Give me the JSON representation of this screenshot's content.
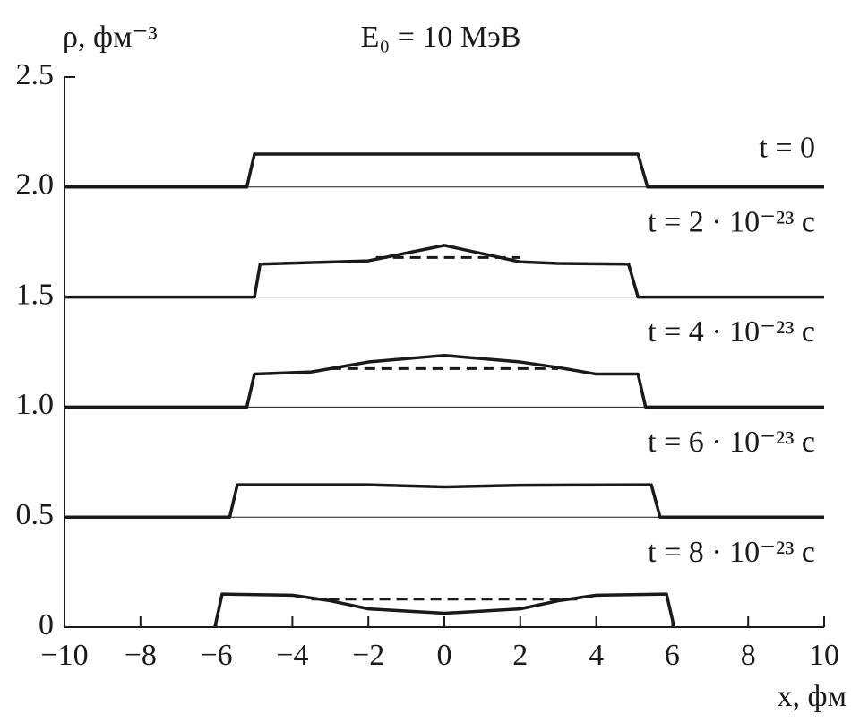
{
  "chart_data": {
    "type": "line",
    "title": "E₀ = 10 МэВ",
    "ylabel": "ρ, фм⁻³",
    "xlabel": "x, фм",
    "color": "#1a1a1a",
    "xlim": [
      -10,
      10
    ],
    "ylim": [
      0,
      2.5
    ],
    "xticks": [
      {
        "value": -10,
        "label": "−10"
      },
      {
        "value": -8,
        "label": "−8"
      },
      {
        "value": -6,
        "label": "−6"
      },
      {
        "value": -4,
        "label": "−4"
      },
      {
        "value": -2,
        "label": "−2"
      },
      0,
      2,
      4,
      6,
      8,
      10
    ],
    "yticks": [
      0,
      0.5,
      {
        "value": 1,
        "label": "1.0"
      },
      1.5,
      {
        "value": 2,
        "label": "2.0"
      },
      2.5
    ],
    "series": [
      {
        "name": "t = 0",
        "x": [
          -10,
          -5.2,
          -5.0,
          5.1,
          5.35,
          10
        ],
        "values": [
          2.0,
          2.0,
          2.15,
          2.15,
          2.0,
          2.0
        ]
      },
      {
        "name": "t = 2 · 10⁻²³ с",
        "x": [
          -10,
          -5.0,
          -4.85,
          -2,
          0,
          2,
          3,
          4.85,
          5.1,
          10
        ],
        "values": [
          1.5,
          1.5,
          1.65,
          1.665,
          1.735,
          1.66,
          1.653,
          1.65,
          1.5,
          1.5
        ],
        "dashed": {
          "x": [
            -1.8,
            2.0
          ],
          "values": [
            1.68,
            1.68
          ]
        }
      },
      {
        "name": "t = 4 · 10⁻²³ с",
        "x": [
          -10,
          -5.2,
          -5.0,
          -3.5,
          -2,
          0,
          2,
          3,
          4,
          5.1,
          5.3,
          10
        ],
        "values": [
          1.0,
          1.0,
          1.15,
          1.16,
          1.205,
          1.235,
          1.205,
          1.18,
          1.15,
          1.15,
          1.0,
          1.0
        ],
        "dashed": {
          "x": [
            -3.0,
            3.0
          ],
          "values": [
            1.175,
            1.175
          ]
        }
      },
      {
        "name": "t = 6 · 10⁻²³ с",
        "x": [
          -10,
          -5.65,
          -5.45,
          -2,
          0,
          2,
          5.45,
          5.68,
          10
        ],
        "values": [
          0.5,
          0.5,
          0.647,
          0.647,
          0.637,
          0.645,
          0.647,
          0.5,
          0.5
        ]
      },
      {
        "name": "t = 8 · 10⁻²³ с",
        "x": [
          -6.04,
          -5.85,
          -4,
          -3,
          -2,
          0,
          2,
          3,
          4,
          5.85,
          6.05
        ],
        "values": [
          0,
          0.15,
          0.145,
          0.12,
          0.083,
          0.063,
          0.083,
          0.12,
          0.145,
          0.15,
          0
        ],
        "dashed": {
          "x": [
            -3.5,
            3.5
          ],
          "values": [
            0.127,
            0.127
          ]
        }
      }
    ]
  }
}
